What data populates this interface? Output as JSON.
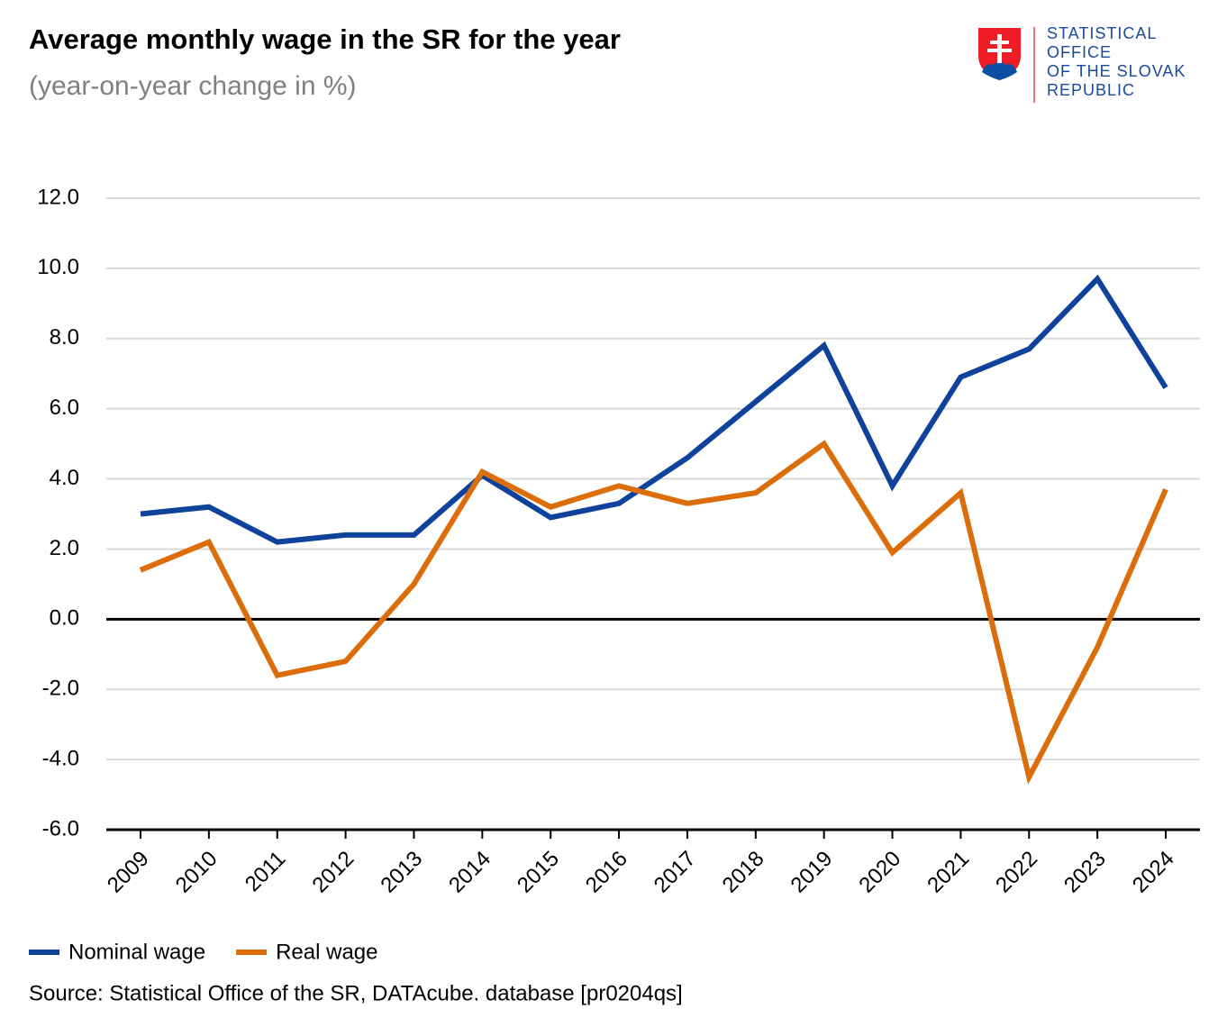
{
  "chart_data": {
    "type": "line",
    "title": "Average monthly wage in the SR for the year",
    "subtitle": "(year-on-year change in %)",
    "source": "Source: Statistical Office of the SR, DATAcube. database [pr0204qs]",
    "logo_text": [
      "STATISTICAL",
      "OFFICE",
      "OF THE SLOVAK",
      "REPUBLIC"
    ],
    "categories": [
      "2009",
      "2010",
      "2011",
      "2012",
      "2013",
      "2014",
      "2015",
      "2016",
      "2017",
      "2018",
      "2019",
      "2020",
      "2021",
      "2022",
      "2023",
      "2024"
    ],
    "series": [
      {
        "name": "Nominal wage",
        "color": "#0f439b",
        "values": [
          3.0,
          3.2,
          2.2,
          2.4,
          2.4,
          4.1,
          2.9,
          3.3,
          4.6,
          6.2,
          7.8,
          3.8,
          6.9,
          7.7,
          9.7,
          6.6
        ]
      },
      {
        "name": "Real wage",
        "color": "#db6e0b",
        "values": [
          1.4,
          2.2,
          -1.6,
          -1.2,
          1.0,
          4.2,
          3.2,
          3.8,
          3.3,
          3.6,
          5.0,
          1.9,
          3.6,
          -4.5,
          -0.8,
          3.7
        ]
      }
    ],
    "ylim": [
      -6,
      12
    ],
    "yticks": [
      {
        "value": -6,
        "label": "-6.0"
      },
      {
        "value": -4,
        "label": "-4.0"
      },
      {
        "value": -2,
        "label": "-2.0"
      },
      {
        "value": 0,
        "label": "0.0"
      },
      {
        "value": 2,
        "label": "2.0"
      },
      {
        "value": 4,
        "label": "4.0"
      },
      {
        "value": 6,
        "label": "6.0"
      },
      {
        "value": 8,
        "label": "8.0"
      },
      {
        "value": 10,
        "label": "10.0"
      },
      {
        "value": 12,
        "label": "12.0"
      }
    ],
    "grid": true,
    "legend": "bottom-left"
  }
}
